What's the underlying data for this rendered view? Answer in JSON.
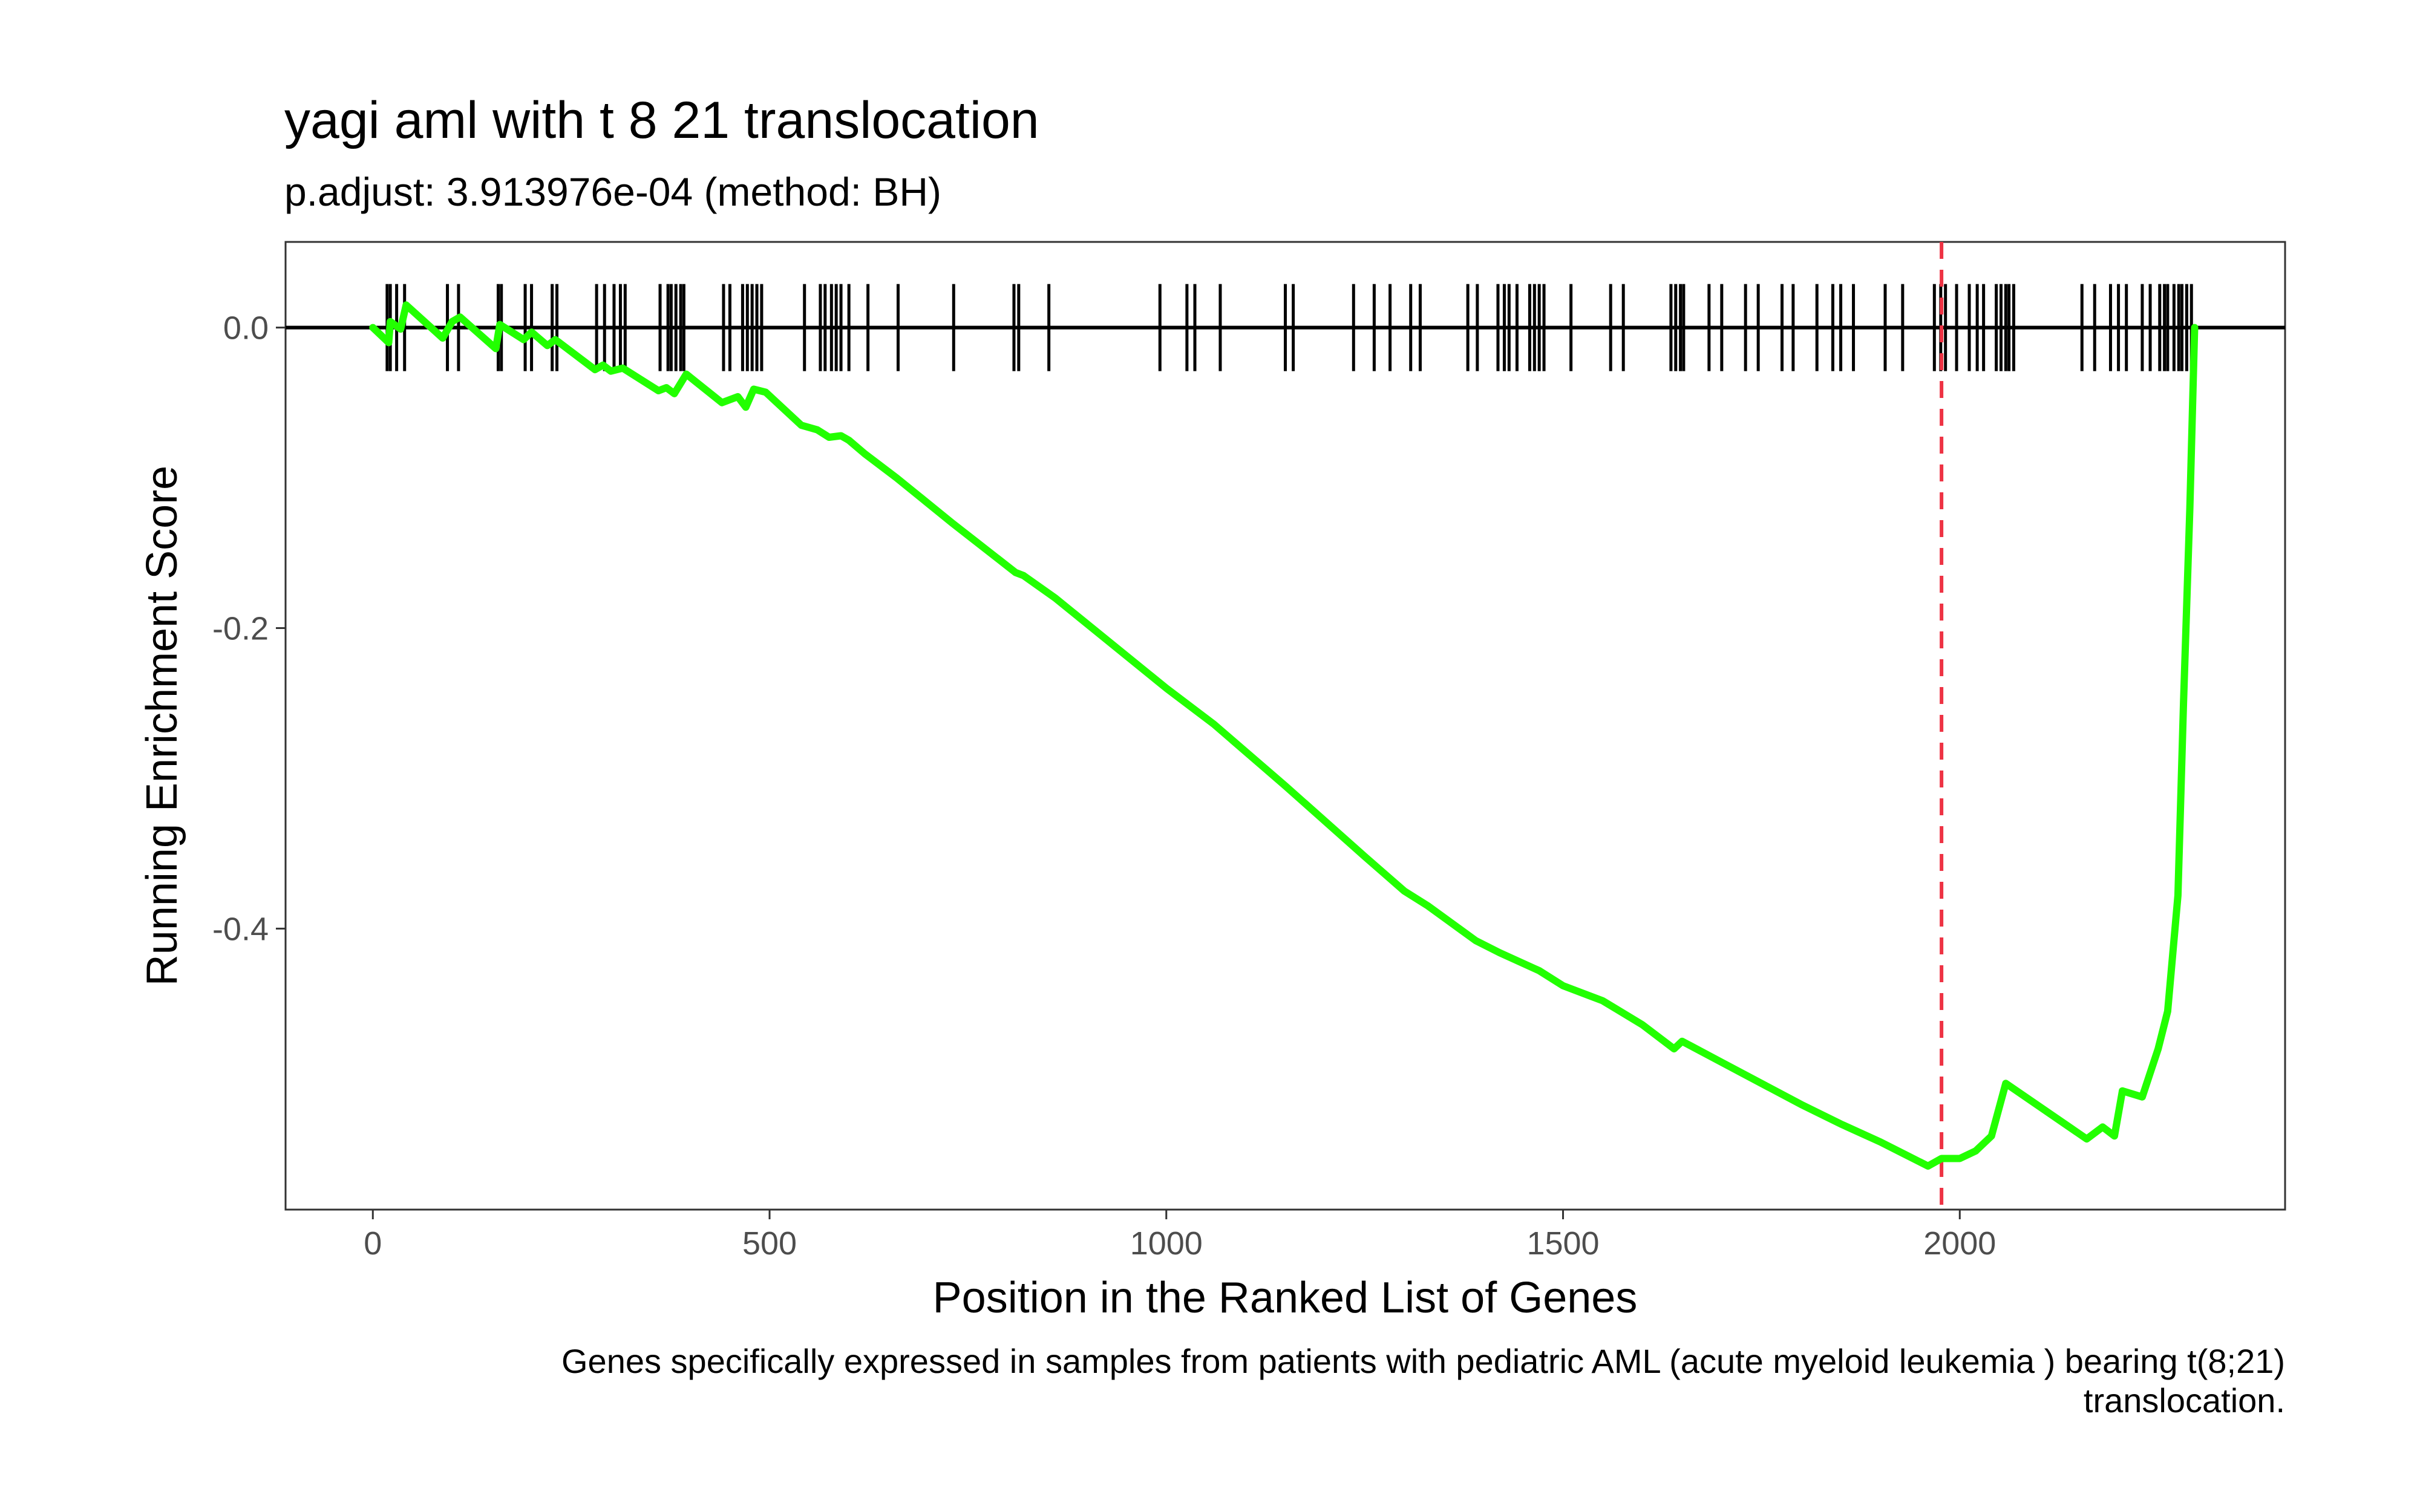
{
  "chart_data": {
    "type": "line",
    "title": "yagi aml with t 8 21 translocation",
    "subtitle": "p.adjust: 3.913976e-04 (method: BH)",
    "xlabel": "Position in the Ranked List of Genes",
    "ylabel": "Running Enrichment Score",
    "caption_lines": [
      "Genes specifically expressed in samples from patients with pediatric AML (acute myeloid leukemia ) bearing t(8;21)",
      "translocation."
    ],
    "xlim": [
      -110,
      2410
    ],
    "ylim": [
      -0.587,
      0.057
    ],
    "x_ticks": [
      0,
      500,
      1000,
      1500,
      2000
    ],
    "x_tick_labels": [
      "0",
      "500",
      "1000",
      "1500",
      "2000"
    ],
    "y_ticks": [
      0.0,
      -0.2,
      -0.4
    ],
    "y_tick_labels": [
      "0.0",
      "-0.2",
      "-0.4"
    ],
    "grid": false,
    "zero_line": 0.0,
    "peak_marker_x": 1977,
    "series": [
      {
        "color": "#22ff00",
        "points": [
          [
            0,
            0.0
          ],
          [
            20,
            -0.01
          ],
          [
            22,
            0.004
          ],
          [
            35,
            -0.001
          ],
          [
            42,
            0.015
          ],
          [
            88,
            -0.007
          ],
          [
            100,
            0.004
          ],
          [
            110,
            0.007
          ],
          [
            155,
            -0.014
          ],
          [
            160,
            0.002
          ],
          [
            190,
            -0.008
          ],
          [
            200,
            -0.003
          ],
          [
            220,
            -0.012
          ],
          [
            230,
            -0.008
          ],
          [
            280,
            -0.028
          ],
          [
            290,
            -0.025
          ],
          [
            300,
            -0.029
          ],
          [
            315,
            -0.027
          ],
          [
            360,
            -0.042
          ],
          [
            370,
            -0.04
          ],
          [
            380,
            -0.044
          ],
          [
            395,
            -0.031
          ],
          [
            440,
            -0.05
          ],
          [
            460,
            -0.046
          ],
          [
            470,
            -0.053
          ],
          [
            480,
            -0.041
          ],
          [
            495,
            -0.043
          ],
          [
            540,
            -0.065
          ],
          [
            560,
            -0.068
          ],
          [
            575,
            -0.073
          ],
          [
            590,
            -0.072
          ],
          [
            600,
            -0.075
          ],
          [
            620,
            -0.084
          ],
          [
            660,
            -0.1
          ],
          [
            730,
            -0.13
          ],
          [
            810,
            -0.163
          ],
          [
            820,
            -0.165
          ],
          [
            860,
            -0.18
          ],
          [
            1000,
            -0.24
          ],
          [
            1060,
            -0.264
          ],
          [
            1150,
            -0.305
          ],
          [
            1250,
            -0.352
          ],
          [
            1300,
            -0.375
          ],
          [
            1330,
            -0.385
          ],
          [
            1390,
            -0.408
          ],
          [
            1420,
            -0.416
          ],
          [
            1470,
            -0.428
          ],
          [
            1500,
            -0.438
          ],
          [
            1550,
            -0.448
          ],
          [
            1600,
            -0.464
          ],
          [
            1640,
            -0.48
          ],
          [
            1650,
            -0.475
          ],
          [
            1700,
            -0.489
          ],
          [
            1750,
            -0.503
          ],
          [
            1800,
            -0.517
          ],
          [
            1850,
            -0.53
          ],
          [
            1900,
            -0.542
          ],
          [
            1960,
            -0.558
          ],
          [
            1977,
            -0.553
          ],
          [
            2000,
            -0.553
          ],
          [
            2020,
            -0.548
          ],
          [
            2040,
            -0.538
          ],
          [
            2058,
            -0.503
          ],
          [
            2160,
            -0.54
          ],
          [
            2180,
            -0.532
          ],
          [
            2195,
            -0.538
          ],
          [
            2205,
            -0.508
          ],
          [
            2230,
            -0.512
          ],
          [
            2250,
            -0.48
          ],
          [
            2262,
            -0.455
          ],
          [
            2275,
            -0.378
          ],
          [
            2282,
            -0.25
          ],
          [
            2290,
            -0.12
          ],
          [
            2296,
            0.0
          ]
        ]
      }
    ],
    "gene_hits": [
      18,
      22,
      30,
      40,
      94,
      108,
      158,
      162,
      192,
      200,
      226,
      232,
      282,
      292,
      304,
      312,
      318,
      362,
      372,
      376,
      382,
      388,
      392,
      442,
      450,
      466,
      472,
      478,
      484,
      490,
      544,
      564,
      570,
      578,
      584,
      590,
      600,
      624,
      662,
      732,
      808,
      814,
      852,
      992,
      1026,
      1036,
      1068,
      1150,
      1160,
      1236,
      1262,
      1282,
      1308,
      1320,
      1380,
      1392,
      1418,
      1426,
      1432,
      1442,
      1458,
      1464,
      1470,
      1476,
      1510,
      1560,
      1576,
      1636,
      1642,
      1648,
      1652,
      1684,
      1700,
      1730,
      1746,
      1776,
      1790,
      1820,
      1840,
      1850,
      1866,
      1906,
      1928,
      1968,
      1976,
      1982,
      1996,
      2012,
      2022,
      2030,
      2046,
      2052,
      2058,
      2062,
      2068,
      2154,
      2170,
      2190,
      2200,
      2210,
      2230,
      2240,
      2252,
      2258,
      2262,
      2270,
      2276,
      2280,
      2286,
      2292
    ],
    "colors": {
      "line": "#22ff00",
      "hits": "#000000",
      "marker": "#ee3344",
      "panel_border": "#333333"
    }
  }
}
